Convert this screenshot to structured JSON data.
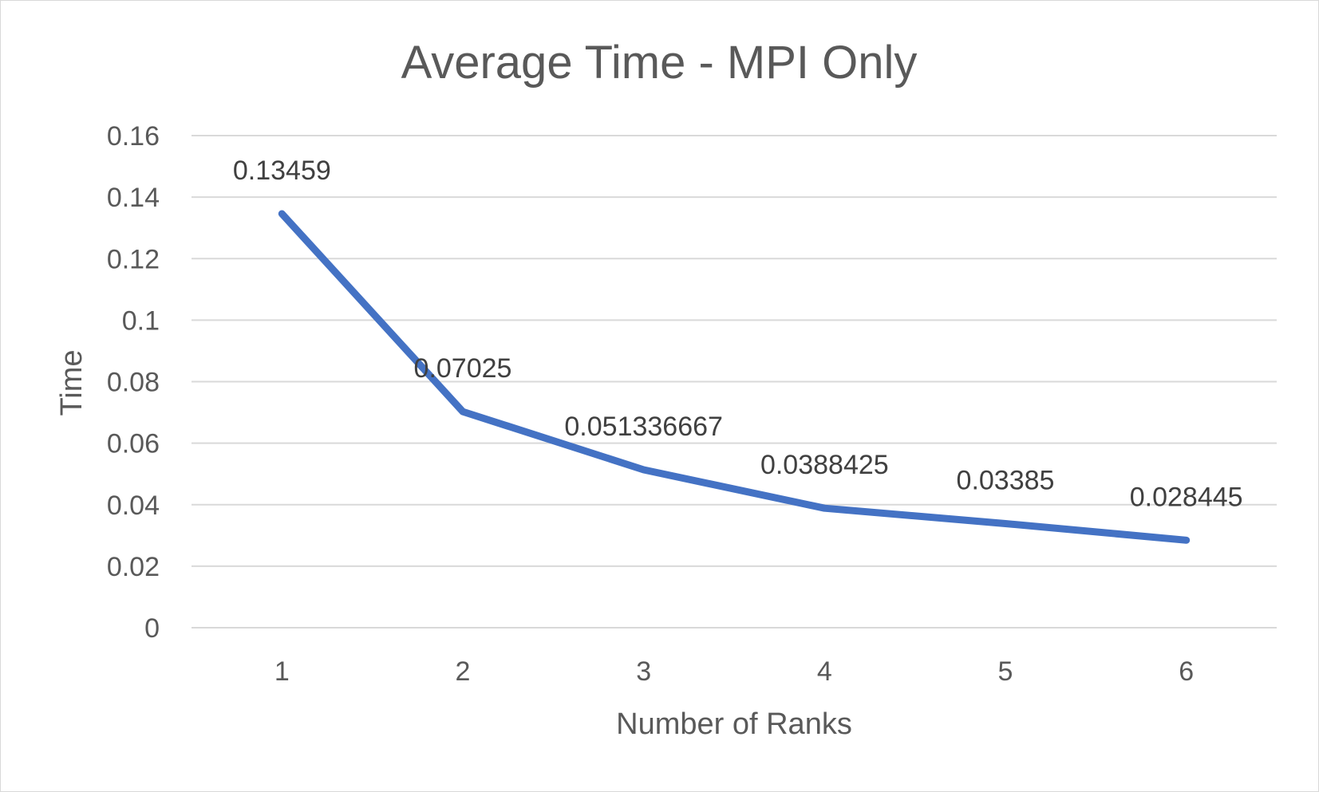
{
  "chart_data": {
    "type": "line",
    "title": "Average Time - MPI Only",
    "xlabel": "Number of Ranks",
    "ylabel": "Time",
    "categories": [
      "1",
      "2",
      "3",
      "4",
      "5",
      "6"
    ],
    "series": [
      {
        "values": [
          0.13459,
          0.07025,
          0.051336667,
          0.0388425,
          0.03385,
          0.028445
        ],
        "labels": [
          "0.13459",
          "0.07025",
          "0.051336667",
          "0.0388425",
          "0.03385",
          "0.028445"
        ],
        "color": "#4472C4"
      }
    ],
    "ylim": [
      0,
      0.16
    ],
    "yticks": [
      0,
      0.02,
      0.04,
      0.06,
      0.08,
      0.1,
      0.12,
      0.14,
      0.16
    ],
    "ytick_labels": [
      "0",
      "0.02",
      "0.04",
      "0.06",
      "0.08",
      "0.1",
      "0.12",
      "0.14",
      "0.16"
    ],
    "grid": "horizontal",
    "legend": "none"
  }
}
